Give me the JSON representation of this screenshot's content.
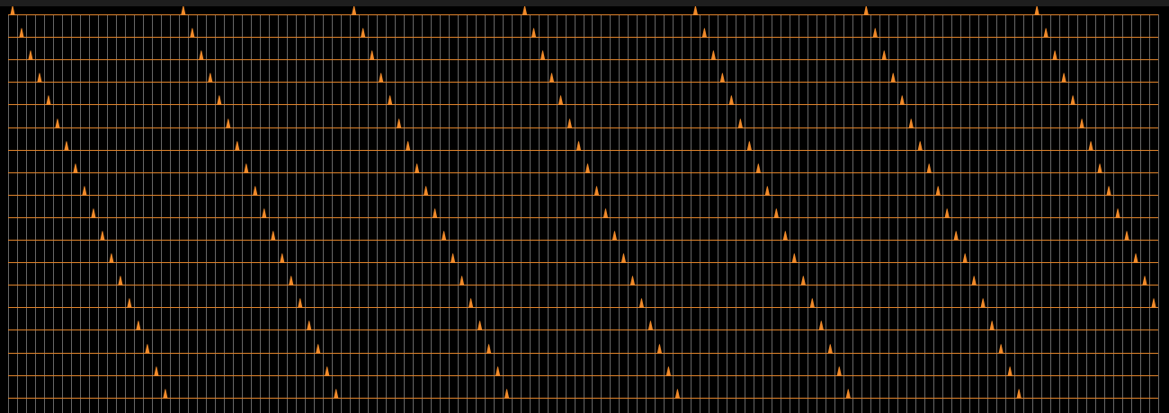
{
  "colors": {
    "background": "#000000",
    "top_bar": "#1e1e1e",
    "vline": "#8a8a8a",
    "hline": "#e0832b",
    "trace": "#f08a2a"
  },
  "grid": {
    "column_count": 128,
    "row_count": 18,
    "columns_per_period": 19
  }
}
